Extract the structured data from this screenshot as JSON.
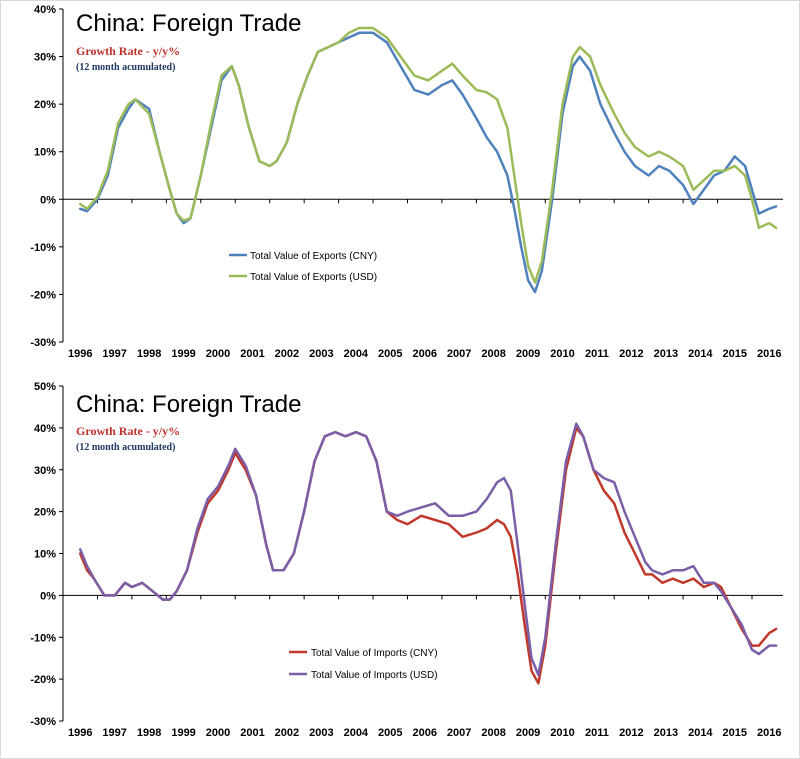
{
  "chart_data": [
    {
      "type": "line",
      "title": "China: Foreign Trade",
      "subtitle": "Growth Rate - y/y%",
      "note": "(12 month acumulated)",
      "xlabel": "",
      "ylabel": "",
      "ylim": [
        -30,
        40
      ],
      "yticks": [
        "-30%",
        "-20%",
        "-10%",
        "0%",
        "10%",
        "20%",
        "30%",
        "40%"
      ],
      "xlim": [
        1996,
        2016.9
      ],
      "xticks": [
        "1996",
        "1997",
        "1998",
        "1999",
        "2000",
        "2001",
        "2002",
        "2003",
        "2004",
        "2005",
        "2006",
        "2007",
        "2008",
        "2009",
        "2010",
        "2011",
        "2012",
        "2013",
        "2014",
        "2015",
        "2016"
      ],
      "grid": false,
      "legend_position": "center-left",
      "colors": {
        "subtitle": "#c0302b",
        "note": "#1f3864"
      },
      "series": [
        {
          "name": "Total Value of Exports (CNY)",
          "color": "#4f81bd",
          "x": [
            1996.5,
            1996.7,
            1997.0,
            1997.3,
            1997.6,
            1997.9,
            1998.1,
            1998.5,
            1998.8,
            1999.1,
            1999.3,
            1999.5,
            1999.7,
            2000.0,
            2000.3,
            2000.6,
            2000.9,
            2001.1,
            2001.4,
            2001.7,
            2002.0,
            2002.2,
            2002.5,
            2002.8,
            2003.1,
            2003.4,
            2003.7,
            2004.0,
            2004.3,
            2004.6,
            2005.0,
            2005.4,
            2005.8,
            2006.2,
            2006.6,
            2007.0,
            2007.3,
            2007.6,
            2008.0,
            2008.3,
            2008.6,
            2008.9,
            2009.1,
            2009.3,
            2009.5,
            2009.7,
            2009.9,
            2010.2,
            2010.5,
            2010.8,
            2011.0,
            2011.3,
            2011.6,
            2012.0,
            2012.3,
            2012.6,
            2013.0,
            2013.3,
            2013.6,
            2014.0,
            2014.3,
            2014.6,
            2014.9,
            2015.2,
            2015.5,
            2015.8,
            2016.0,
            2016.2,
            2016.5,
            2016.7
          ],
          "values": [
            -2,
            -2.5,
            0,
            5,
            15,
            19,
            21,
            19,
            10,
            2,
            -3,
            -5,
            -4,
            5,
            15,
            25,
            28,
            24,
            15,
            8,
            7,
            8,
            12,
            20,
            26,
            31,
            32,
            33,
            34,
            35,
            35,
            33,
            28,
            23,
            22,
            24,
            25,
            22,
            17,
            13,
            10,
            5,
            -2,
            -10,
            -17,
            -19.5,
            -15,
            0,
            18,
            28,
            30,
            27,
            20,
            14,
            10,
            7,
            5,
            7,
            6,
            3,
            -1,
            2,
            5,
            6,
            9,
            7,
            2,
            -3,
            -2,
            -1.5
          ]
        },
        {
          "name": "Total Value of Exports (USD)",
          "color": "#9bbb59",
          "x": [
            1996.5,
            1996.7,
            1997.0,
            1997.3,
            1997.6,
            1997.9,
            1998.1,
            1998.5,
            1998.8,
            1999.1,
            1999.3,
            1999.5,
            1999.7,
            2000.0,
            2000.3,
            2000.6,
            2000.9,
            2001.1,
            2001.4,
            2001.7,
            2002.0,
            2002.2,
            2002.5,
            2002.8,
            2003.1,
            2003.4,
            2003.7,
            2004.0,
            2004.3,
            2004.6,
            2005.0,
            2005.4,
            2005.8,
            2006.2,
            2006.6,
            2007.0,
            2007.3,
            2007.6,
            2008.0,
            2008.3,
            2008.6,
            2008.9,
            2009.1,
            2009.3,
            2009.5,
            2009.7,
            2009.9,
            2010.2,
            2010.5,
            2010.8,
            2011.0,
            2011.3,
            2011.6,
            2012.0,
            2012.3,
            2012.6,
            2013.0,
            2013.3,
            2013.6,
            2014.0,
            2014.3,
            2014.6,
            2014.9,
            2015.2,
            2015.5,
            2015.8,
            2016.0,
            2016.2,
            2016.5,
            2016.7
          ],
          "values": [
            -1,
            -2,
            0.5,
            6,
            16,
            20,
            21,
            18,
            10,
            2,
            -3,
            -4.5,
            -4,
            5,
            16,
            26,
            28,
            24,
            15,
            8,
            7,
            8,
            12,
            20,
            26,
            31,
            32,
            33,
            35,
            36,
            36,
            34,
            30,
            26,
            25,
            27,
            28.5,
            26,
            23,
            22.5,
            21,
            15,
            5,
            -5,
            -14,
            -17.5,
            -13,
            2,
            20,
            30,
            32,
            30,
            24,
            18,
            14,
            11,
            9,
            10,
            9,
            7,
            2,
            4,
            6,
            6,
            7,
            5,
            0,
            -6,
            -5,
            -6
          ]
        }
      ]
    },
    {
      "type": "line",
      "title": "China: Foreign Trade",
      "subtitle": "Growth Rate - y/y%",
      "note": "(12 month acumulated)",
      "xlabel": "",
      "ylabel": "",
      "ylim": [
        -30,
        50
      ],
      "yticks": [
        "-30%",
        "-20%",
        "-10%",
        "0%",
        "10%",
        "20%",
        "30%",
        "40%",
        "50%"
      ],
      "xlim": [
        1996,
        2016.9
      ],
      "xticks": [
        "1996",
        "1997",
        "1998",
        "1999",
        "2000",
        "2001",
        "2002",
        "2003",
        "2004",
        "2005",
        "2006",
        "2007",
        "2008",
        "2009",
        "2010",
        "2011",
        "2012",
        "2013",
        "2014",
        "2015",
        "2016"
      ],
      "grid": false,
      "legend_position": "bottom-left",
      "colors": {
        "subtitle": "#c0302b",
        "note": "#1f3864"
      },
      "series": [
        {
          "name": "Total Value of Imports (CNY)",
          "color": "#c0392b",
          "x": [
            1996.5,
            1996.7,
            1996.9,
            1997.2,
            1997.5,
            1997.8,
            1998.0,
            1998.3,
            1998.6,
            1998.9,
            1999.1,
            1999.3,
            1999.6,
            1999.9,
            2000.2,
            2000.5,
            2000.8,
            2001.0,
            2001.3,
            2001.6,
            2001.9,
            2002.1,
            2002.4,
            2002.7,
            2003.0,
            2003.3,
            2003.6,
            2003.9,
            2004.2,
            2004.5,
            2004.8,
            2005.1,
            2005.4,
            2005.7,
            2006.0,
            2006.4,
            2006.8,
            2007.2,
            2007.6,
            2008.0,
            2008.3,
            2008.6,
            2008.8,
            2009.0,
            2009.2,
            2009.4,
            2009.6,
            2009.8,
            2010.0,
            2010.3,
            2010.6,
            2010.9,
            2011.1,
            2011.4,
            2011.7,
            2012.0,
            2012.3,
            2012.6,
            2012.9,
            2013.1,
            2013.4,
            2013.7,
            2014.0,
            2014.3,
            2014.6,
            2014.9,
            2015.1,
            2015.4,
            2015.7,
            2016.0,
            2016.2,
            2016.5,
            2016.7
          ],
          "values": [
            10,
            6,
            4,
            0,
            0,
            3,
            2,
            3,
            1,
            -1,
            -1,
            1,
            6,
            15,
            22,
            25,
            30,
            34,
            30,
            24,
            12,
            6,
            6,
            10,
            20,
            32,
            38,
            39,
            38,
            39,
            38,
            32,
            20,
            18,
            17,
            19,
            18,
            17,
            14,
            15,
            16,
            18,
            17,
            14,
            5,
            -7,
            -18,
            -21,
            -12,
            10,
            30,
            40,
            38,
            30,
            25,
            22,
            15,
            10,
            5,
            5,
            3,
            4,
            3,
            4,
            2,
            3,
            2,
            -3,
            -8,
            -12,
            -12,
            -9,
            -8
          ]
        },
        {
          "name": "Total Value of Imports (USD)",
          "color": "#7b5ea7",
          "x": [
            1996.5,
            1996.7,
            1996.9,
            1997.2,
            1997.5,
            1997.8,
            1998.0,
            1998.3,
            1998.6,
            1998.9,
            1999.1,
            1999.3,
            1999.6,
            1999.9,
            2000.2,
            2000.5,
            2000.8,
            2001.0,
            2001.3,
            2001.6,
            2001.9,
            2002.1,
            2002.4,
            2002.7,
            2003.0,
            2003.3,
            2003.6,
            2003.9,
            2004.2,
            2004.5,
            2004.8,
            2005.1,
            2005.4,
            2005.7,
            2006.0,
            2006.4,
            2006.8,
            2007.2,
            2007.6,
            2008.0,
            2008.3,
            2008.6,
            2008.8,
            2009.0,
            2009.2,
            2009.4,
            2009.6,
            2009.8,
            2010.0,
            2010.3,
            2010.6,
            2010.9,
            2011.1,
            2011.4,
            2011.7,
            2012.0,
            2012.3,
            2012.6,
            2012.9,
            2013.1,
            2013.4,
            2013.7,
            2014.0,
            2014.3,
            2014.6,
            2014.9,
            2015.1,
            2015.4,
            2015.7,
            2016.0,
            2016.2,
            2016.5,
            2016.7
          ],
          "values": [
            11,
            7,
            4,
            0,
            0,
            3,
            2,
            3,
            1,
            -1,
            -1,
            1,
            6,
            16,
            23,
            26,
            31,
            35,
            31,
            24,
            12,
            6,
            6,
            10,
            20,
            32,
            38,
            39,
            38,
            39,
            38,
            32,
            20,
            19,
            20,
            21,
            22,
            19,
            19,
            20,
            23,
            27,
            28,
            25,
            12,
            -2,
            -15,
            -19,
            -10,
            12,
            32,
            41,
            38,
            30,
            28,
            27,
            20,
            14,
            8,
            6,
            5,
            6,
            6,
            7,
            3,
            3,
            1,
            -3,
            -7,
            -13,
            -14,
            -12,
            -12
          ]
        }
      ]
    }
  ]
}
